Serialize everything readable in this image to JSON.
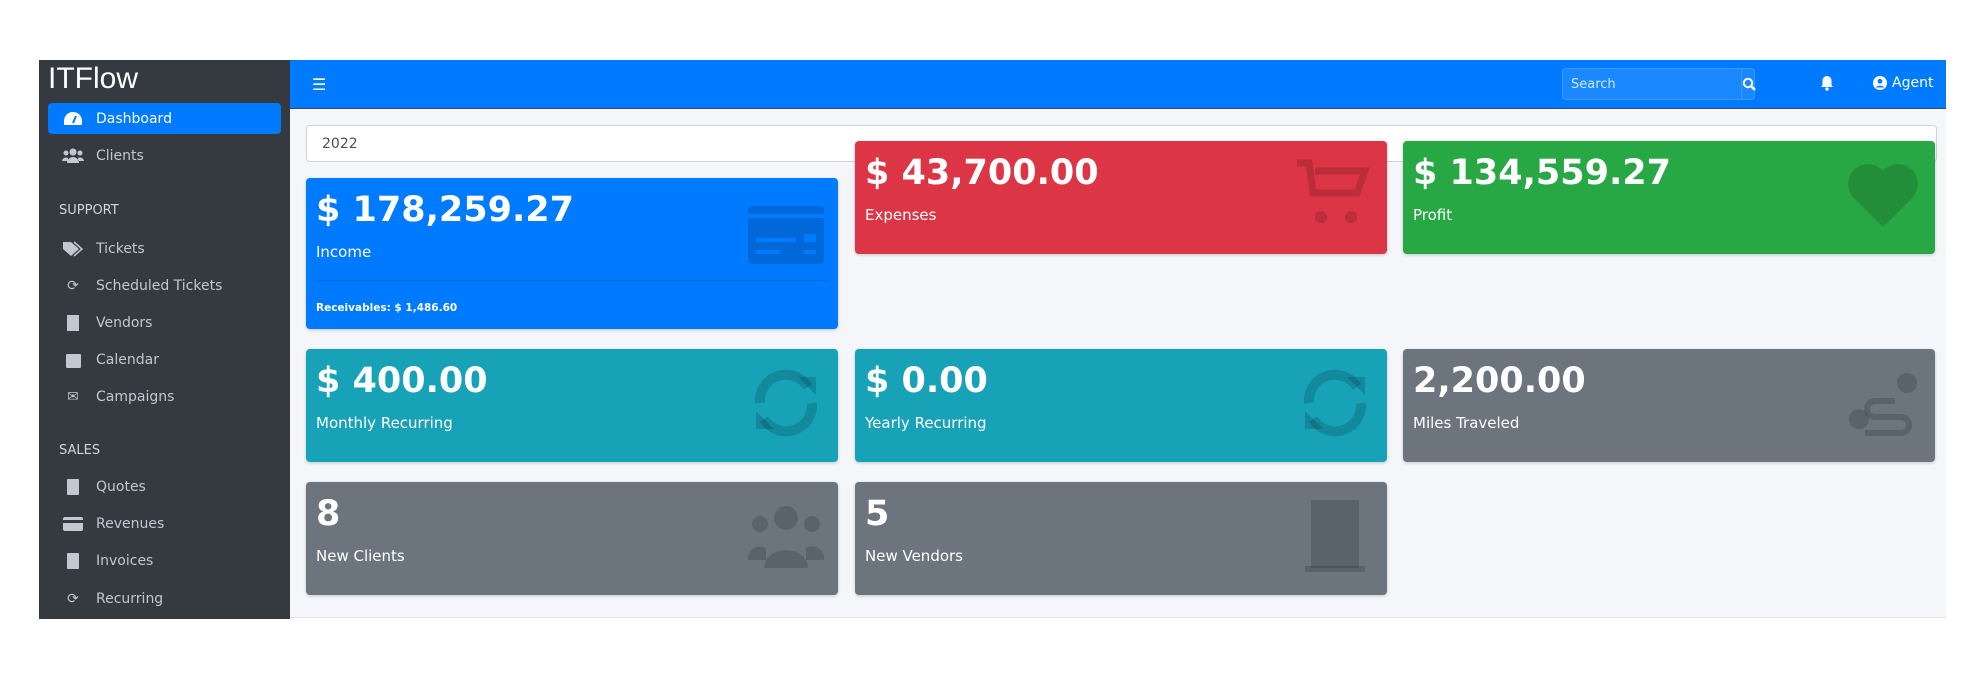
{
  "app": {
    "brand": "ITFlow"
  },
  "sidebar": {
    "items": [
      {
        "label": "Dashboard",
        "icon": "tachometer-icon",
        "active": true
      },
      {
        "label": "Clients",
        "icon": "users-icon"
      }
    ],
    "support_header": "SUPPORT",
    "support": [
      {
        "label": "Tickets",
        "icon": "tags-icon"
      },
      {
        "label": "Scheduled Tickets",
        "icon": "sync-icon"
      },
      {
        "label": "Vendors",
        "icon": "building-icon"
      },
      {
        "label": "Calendar",
        "icon": "calendar-icon"
      },
      {
        "label": "Campaigns",
        "icon": "envelope-icon"
      }
    ],
    "sales_header": "SALES",
    "sales": [
      {
        "label": "Quotes",
        "icon": "file-icon"
      },
      {
        "label": "Revenues",
        "icon": "credit-card-icon"
      },
      {
        "label": "Invoices",
        "icon": "file-invoice-dollar-icon"
      },
      {
        "label": "Recurring",
        "icon": "sync-icon"
      }
    ]
  },
  "navbar": {
    "search_placeholder": "Search",
    "user": "Agent"
  },
  "year_select": {
    "value": "2022"
  },
  "cards": {
    "income": {
      "value": "$ 178,259.27",
      "label": "Income",
      "footer": "Receivables: $ 1,486.60",
      "color": "#007bff"
    },
    "expenses": {
      "value": "$ 43,700.00",
      "label": "Expenses",
      "color": "#dc3545"
    },
    "profit": {
      "value": "$ 134,559.27",
      "label": "Profit",
      "color": "#28a745"
    },
    "monthly": {
      "value": "$ 400.00",
      "label": "Monthly Recurring",
      "color": "#17a2b8"
    },
    "yearly": {
      "value": "$ 0.00",
      "label": "Yearly Recurring",
      "color": "#17a2b8"
    },
    "miles": {
      "value": "2,200.00",
      "label": "Miles Traveled",
      "color": "#6c757d"
    },
    "clients": {
      "value": "8",
      "label": "New Clients",
      "color": "#6c757d"
    },
    "vendors": {
      "value": "5",
      "label": "New Vendors",
      "color": "#6c757d"
    }
  }
}
